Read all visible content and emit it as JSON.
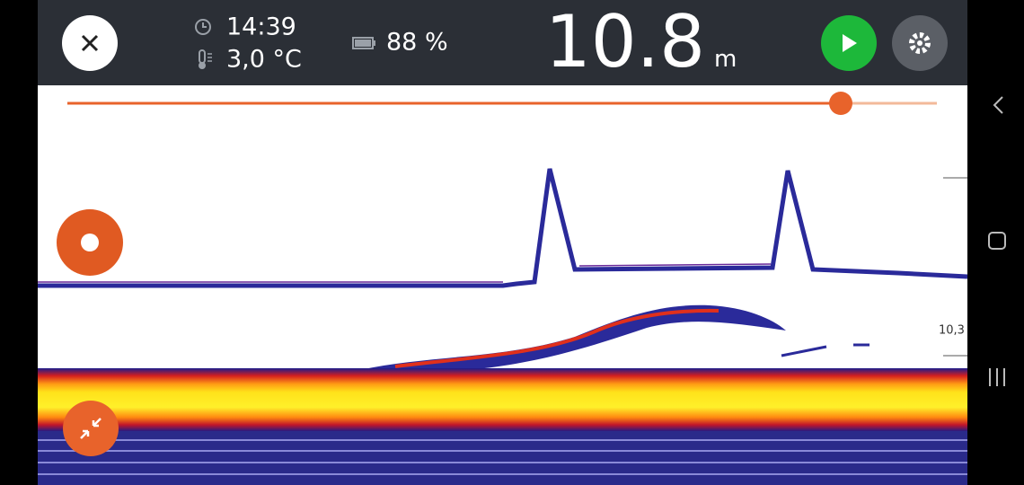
{
  "status": {
    "time": "14:39",
    "temperature": "3,0 °C",
    "battery": "88 %"
  },
  "depth": {
    "value": "10.8",
    "unit": "m"
  },
  "sonar": {
    "scale_label": "10,3"
  }
}
